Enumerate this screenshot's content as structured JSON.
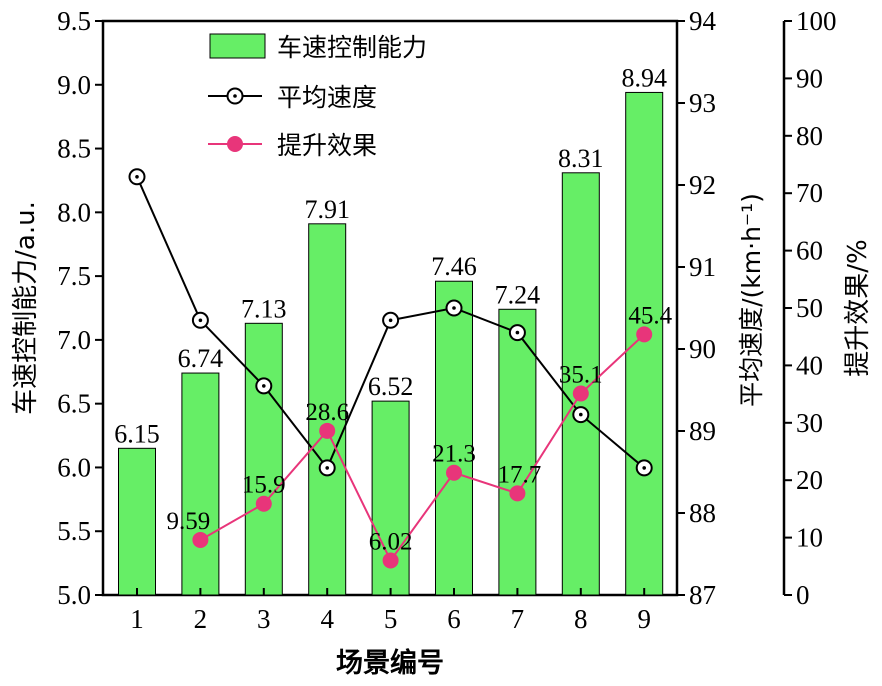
{
  "chart_data": {
    "type": "bar",
    "xlabel": "场景编号",
    "categories": [
      "1",
      "2",
      "3",
      "4",
      "5",
      "6",
      "7",
      "8",
      "9"
    ],
    "y_left": {
      "label": "车速控制能力/a.u.",
      "range": [
        5.0,
        9.5
      ],
      "ticks": [
        "5.0",
        "5.5",
        "6.0",
        "6.5",
        "7.0",
        "7.5",
        "8.0",
        "8.5",
        "9.0",
        "9.5"
      ]
    },
    "y_right1": {
      "label": "平均速度/(km·h⁻¹)",
      "range": [
        87,
        94
      ],
      "ticks": [
        "87",
        "88",
        "89",
        "90",
        "91",
        "92",
        "93",
        "94"
      ]
    },
    "y_right2": {
      "label": "提升效果/%",
      "range": [
        0,
        100
      ],
      "ticks": [
        "0",
        "10",
        "20",
        "30",
        "40",
        "50",
        "60",
        "70",
        "80",
        "90",
        "100"
      ]
    },
    "series": [
      {
        "name": "车速控制能力",
        "kind": "bar",
        "axis": "left",
        "color": "#66ee66",
        "values": [
          6.15,
          6.74,
          7.13,
          7.91,
          6.52,
          7.46,
          7.24,
          8.31,
          8.94
        ],
        "labels": [
          "6.15",
          "6.74",
          "7.13",
          "7.91",
          "6.52",
          "7.46",
          "7.24",
          "8.31",
          "8.94"
        ]
      },
      {
        "name": "平均速度",
        "kind": "line",
        "axis": "right1",
        "color": "#000000",
        "marker": "open-circle-dot",
        "values": [
          92.1,
          90.35,
          89.55,
          88.55,
          90.35,
          90.5,
          90.2,
          89.2,
          88.55
        ]
      },
      {
        "name": "提升效果",
        "kind": "line",
        "axis": "right2",
        "color": "#e8357a",
        "marker": "filled-circle",
        "values": [
          null,
          9.59,
          15.9,
          28.6,
          6.02,
          21.3,
          17.7,
          35.1,
          45.4
        ],
        "labels": [
          "",
          "9.59",
          "15.9",
          "28.6",
          "6.02",
          "21.3",
          "17.7",
          "35.1",
          "45.4"
        ]
      }
    ],
    "legend": {
      "placement": "top-left",
      "items": [
        "车速控制能力",
        "平均速度",
        "提升效果"
      ]
    },
    "grid": false
  }
}
